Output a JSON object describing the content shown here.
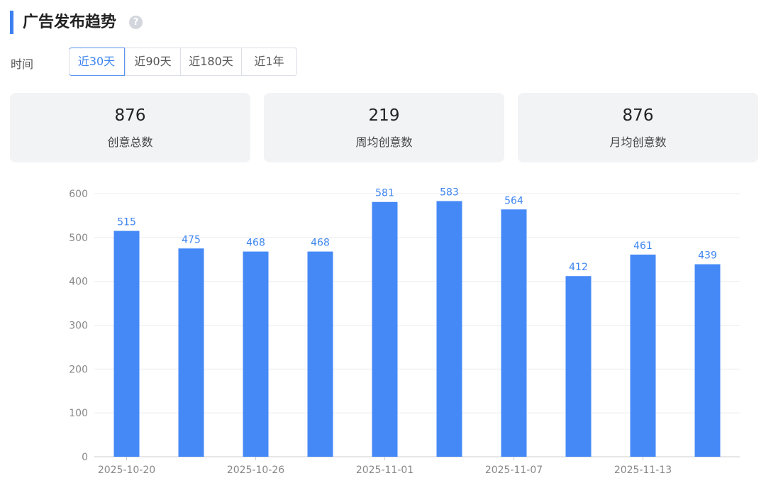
{
  "header": {
    "title": "广告发布趋势",
    "help_icon": "question-circle-icon"
  },
  "filter": {
    "label": "时间",
    "options": [
      "近30天",
      "近90天",
      "近180天",
      "近1年"
    ],
    "selected": "近30天"
  },
  "stats": [
    {
      "value": "876",
      "label": "创意总数"
    },
    {
      "value": "219",
      "label": "周均创意数"
    },
    {
      "value": "876",
      "label": "月均创意数"
    }
  ],
  "colors": {
    "accent": "#3d7ff0",
    "bar": "#4589f7",
    "label": "#3d85f0"
  },
  "chart_data": {
    "type": "bar",
    "categories": [
      "2025-10-20",
      "",
      "2025-10-26",
      "",
      "2025-11-01",
      "",
      "2025-11-07",
      "",
      "2025-11-13",
      ""
    ],
    "values": [
      515,
      475,
      468,
      468,
      581,
      583,
      564,
      412,
      461,
      439
    ],
    "yticks": [
      0,
      100,
      200,
      300,
      400,
      500,
      600
    ],
    "ylim": [
      0,
      600
    ],
    "grid": true,
    "data_labels": true
  }
}
